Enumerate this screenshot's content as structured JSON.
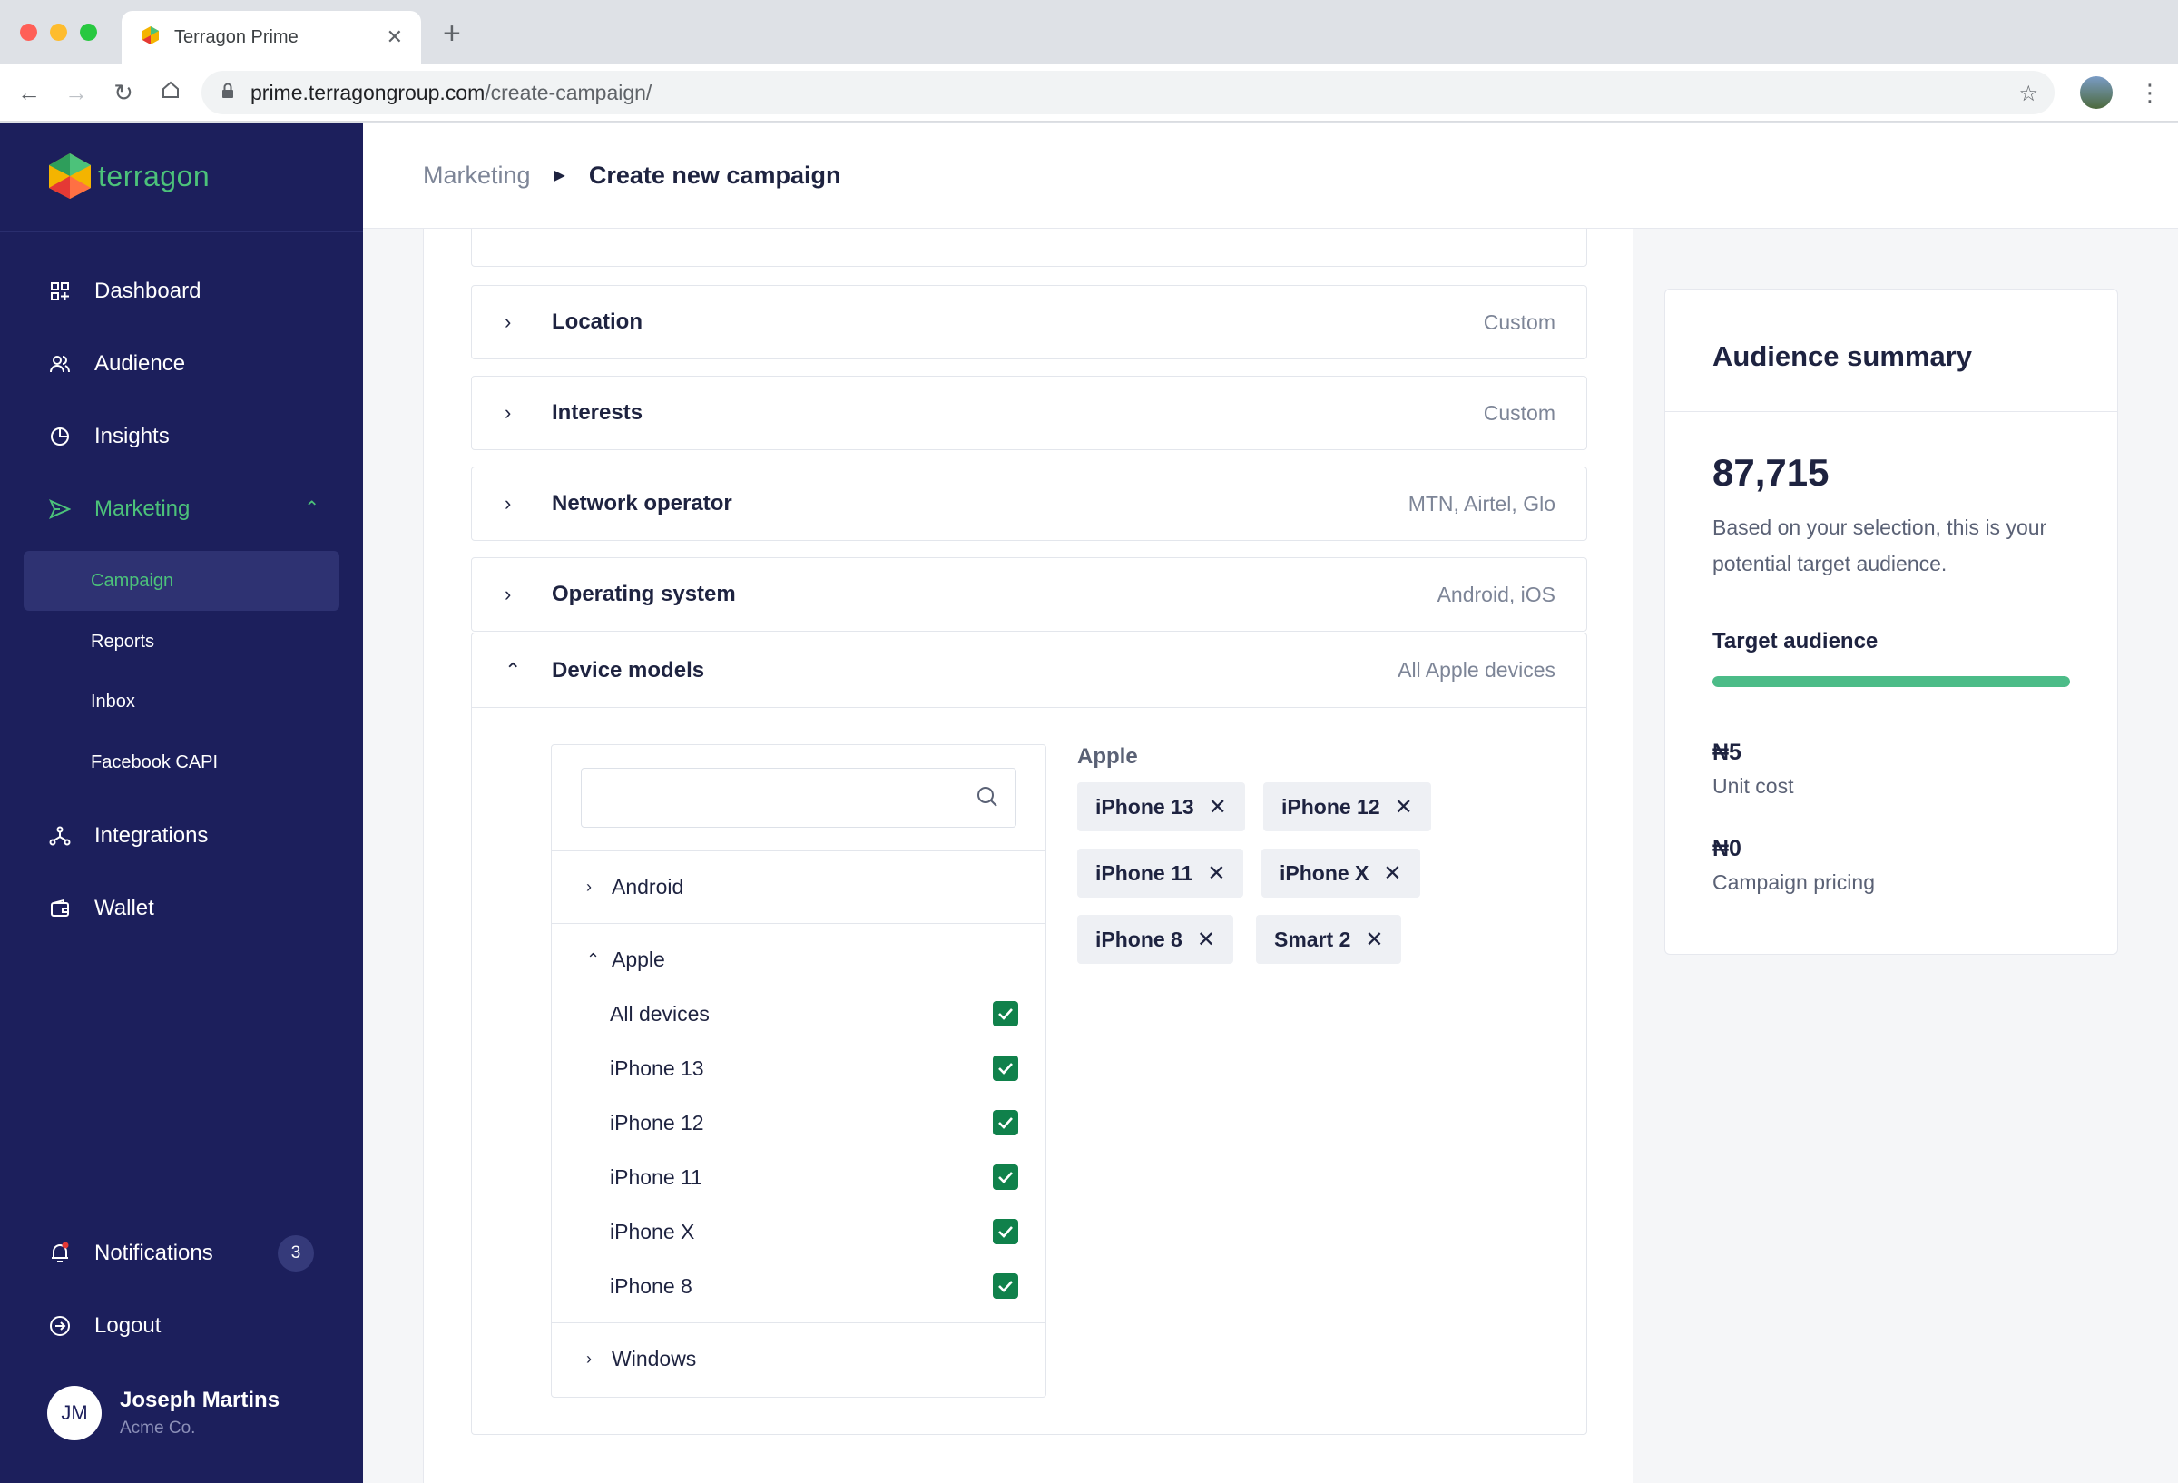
{
  "browser": {
    "tab_title": "Terragon Prime",
    "url_host": "prime.terragongroup.com",
    "url_path": "/create-campaign/"
  },
  "brand": {
    "name": "terragon",
    "accent": "#4cc27a",
    "sidebar_bg": "#1c1f5c"
  },
  "sidebar": {
    "items": [
      {
        "label": "Dashboard",
        "icon": "dashboard-icon"
      },
      {
        "label": "Audience",
        "icon": "users-icon"
      },
      {
        "label": "Insights",
        "icon": "pie-chart-icon"
      },
      {
        "label": "Marketing",
        "icon": "send-icon"
      }
    ],
    "sub_items": [
      {
        "label": "Campaign"
      },
      {
        "label": "Reports"
      },
      {
        "label": "Inbox"
      },
      {
        "label": "Facebook CAPI"
      }
    ],
    "items_bottom": [
      {
        "label": "Integrations",
        "icon": "integrations-icon"
      },
      {
        "label": "Wallet",
        "icon": "wallet-icon"
      }
    ],
    "notifications": {
      "label": "Notifications",
      "count": "3"
    },
    "logout": {
      "label": "Logout"
    },
    "user": {
      "initials": "JM",
      "name": "Joseph Martins",
      "org": "Acme Co."
    }
  },
  "breadcrumb": {
    "parent": "Marketing",
    "current": "Create new campaign"
  },
  "accordions": [
    {
      "label": "Location",
      "value": "Custom"
    },
    {
      "label": "Interests",
      "value": "Custom"
    },
    {
      "label": "Network operator",
      "value": "MTN, Airtel, Glo"
    },
    {
      "label": "Operating system",
      "value": "Android, iOS"
    }
  ],
  "device_models": {
    "label": "Device models",
    "value": "All Apple devices",
    "search": {
      "placeholder": "",
      "value": ""
    },
    "groups": {
      "android": "Android",
      "apple": "Apple",
      "windows": "Windows"
    },
    "apple_options": [
      {
        "label": "All devices",
        "checked": true
      },
      {
        "label": "iPhone 13",
        "checked": true
      },
      {
        "label": "iPhone 12",
        "checked": true
      },
      {
        "label": "iPhone 11",
        "checked": true
      },
      {
        "label": "iPhone X",
        "checked": true
      },
      {
        "label": "iPhone 8",
        "checked": true
      }
    ],
    "selected_title": "Apple",
    "selected_chips": [
      "iPhone 13",
      "iPhone 12",
      "iPhone 11",
      "iPhone X",
      "iPhone 8",
      "Smart 2"
    ]
  },
  "summary": {
    "title": "Audience summary",
    "count": "87,715",
    "description": "Based on your selection, this is your potential target audience.",
    "target_label": "Target audience",
    "target_fraction": 1.0,
    "unit_cost_value": "₦5",
    "unit_cost_label": "Unit cost",
    "pricing_value": "₦0",
    "pricing_label": "Campaign pricing"
  }
}
